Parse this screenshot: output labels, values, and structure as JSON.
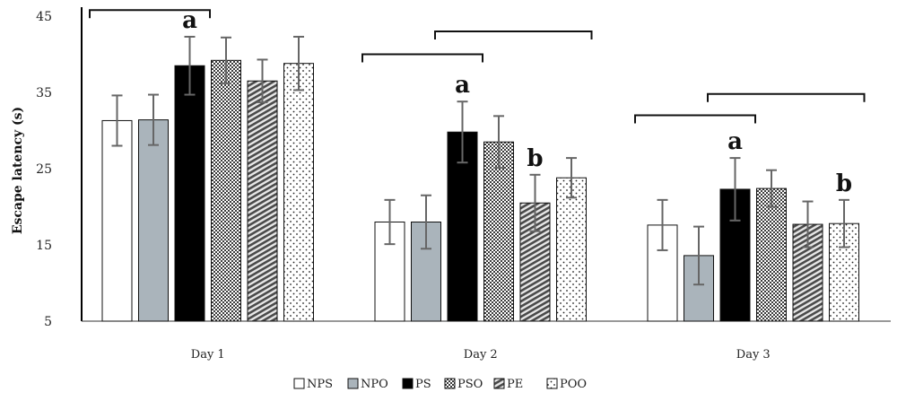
{
  "chart_data": {
    "type": "bar",
    "ylabel": "Escape latency (s)",
    "xlabel": "",
    "ylim": [
      5,
      45
    ],
    "yticks": [
      5,
      15,
      25,
      35,
      45
    ],
    "grid": false,
    "legend_position": "bottom",
    "categories": [
      "Day 1",
      "Day 2",
      "Day 3"
    ],
    "series": [
      {
        "name": "NPS",
        "values": [
          31.3,
          18.0,
          17.6
        ],
        "errors": [
          3.3,
          2.9,
          3.3
        ],
        "pattern": "white"
      },
      {
        "name": "NPO",
        "values": [
          31.4,
          18.0,
          13.6
        ],
        "errors": [
          3.3,
          3.5,
          3.8
        ],
        "pattern": "gray"
      },
      {
        "name": "PS",
        "values": [
          38.5,
          29.8,
          22.3
        ],
        "errors": [
          3.8,
          4.0,
          4.1
        ],
        "pattern": "black"
      },
      {
        "name": "PSO",
        "values": [
          39.2,
          28.5,
          22.4
        ],
        "errors": [
          3.0,
          3.4,
          2.4
        ],
        "pattern": "checker"
      },
      {
        "name": "PE",
        "values": [
          36.5,
          20.5,
          17.7
        ],
        "errors": [
          2.8,
          3.7,
          3.0
        ],
        "pattern": "diagonal"
      },
      {
        "name": "POO",
        "values": [
          38.8,
          23.8,
          17.8
        ],
        "errors": [
          3.5,
          2.6,
          3.1
        ],
        "pattern": "dots"
      }
    ],
    "annotations": [
      {
        "text": "a",
        "category": "Day 1",
        "series": "PS"
      },
      {
        "text": "a",
        "category": "Day 2",
        "series": "PS"
      },
      {
        "text": "b",
        "category": "Day 2",
        "series": "PE"
      },
      {
        "text": "a",
        "category": "Day 3",
        "series": "PS"
      },
      {
        "text": "b",
        "category": "Day 3",
        "series": "POO"
      }
    ],
    "brackets": [
      {
        "category": "Day 1",
        "from": "NPS",
        "to": "PS",
        "level": 45.8
      },
      {
        "category": "Day 2",
        "from": "NPS",
        "to": "PS",
        "level": 40.0
      },
      {
        "category": "Day 2",
        "from": "PS",
        "to": "POO",
        "level": 43.0
      },
      {
        "category": "Day 3",
        "from": "NPS",
        "to": "PS",
        "level": 32.0
      },
      {
        "category": "Day 3",
        "from": "PS",
        "to": "POO",
        "level": 34.8
      }
    ],
    "colors": {
      "black": "#000000",
      "gray": "#aab4bb",
      "white": "#ffffff",
      "pattern_fill": "#4a4a4a",
      "error_bar": "#666666"
    }
  }
}
